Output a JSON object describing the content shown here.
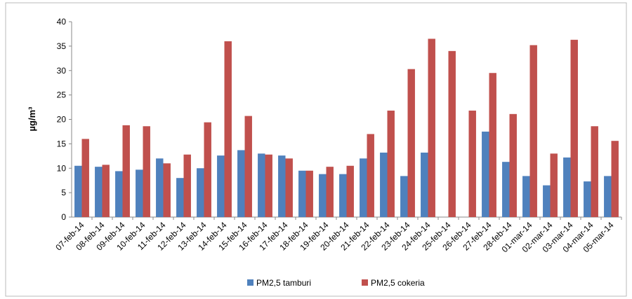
{
  "chart_data": {
    "type": "bar",
    "y_label": "µg/m³",
    "categories": [
      "07-feb-14",
      "08-feb-14",
      "09-feb-14",
      "10-feb-14",
      "11-feb-14",
      "12-feb-14",
      "13-feb-14",
      "14-feb-14",
      "15-feb-14",
      "16-feb-14",
      "17-feb-14",
      "18-feb-14",
      "19-feb-14",
      "20-feb-14",
      "21-feb-14",
      "22-feb-14",
      "23-feb-14",
      "24-feb-14",
      "25-feb-14",
      "26-feb-14",
      "27-feb-14",
      "28-feb-14",
      "01-mar-14",
      "02-mar-14",
      "03-mar-14",
      "04-mar-14",
      "05-mar-14"
    ],
    "series": [
      {
        "name": "PM2,5 tamburi",
        "color": "#4f81bd",
        "values": [
          10.5,
          10.3,
          9.4,
          9.7,
          12.0,
          8.0,
          10.0,
          12.6,
          13.7,
          13.0,
          12.6,
          9.5,
          8.8,
          8.8,
          12.0,
          13.2,
          8.4,
          13.2,
          null,
          null,
          17.5,
          11.3,
          8.4,
          6.5,
          12.2,
          7.3,
          8.4
        ]
      },
      {
        "name": "PM2,5 cokeria",
        "color": "#c0504d",
        "values": [
          16.0,
          10.7,
          18.8,
          18.6,
          11.0,
          12.8,
          19.4,
          36.0,
          20.7,
          12.8,
          12.0,
          9.5,
          10.3,
          10.5,
          17.0,
          21.8,
          30.3,
          36.5,
          34.0,
          21.8,
          29.5,
          21.1,
          35.2,
          13.0,
          36.3,
          18.6,
          15.6
        ]
      }
    ],
    "ylim": [
      0,
      40
    ],
    "yticks": [
      0,
      5,
      10,
      15,
      20,
      25,
      30,
      35,
      40
    ],
    "grid": false,
    "legend": "bottom"
  }
}
